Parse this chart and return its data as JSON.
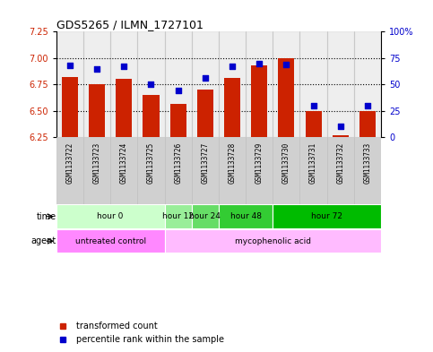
{
  "title": "GDS5265 / ILMN_1727101",
  "samples": [
    "GSM1133722",
    "GSM1133723",
    "GSM1133724",
    "GSM1133725",
    "GSM1133726",
    "GSM1133727",
    "GSM1133728",
    "GSM1133729",
    "GSM1133730",
    "GSM1133731",
    "GSM1133732",
    "GSM1133733"
  ],
  "bar_values": [
    6.82,
    6.75,
    6.8,
    6.65,
    6.57,
    6.7,
    6.81,
    6.93,
    7.0,
    6.5,
    6.27,
    6.5
  ],
  "bar_bottom": 6.25,
  "percentile_values": [
    68,
    65,
    67,
    50,
    44,
    56,
    67,
    70,
    69,
    30,
    10,
    30
  ],
  "left_ylim": [
    6.25,
    7.25
  ],
  "right_ylim": [
    0,
    100
  ],
  "left_yticks": [
    6.25,
    6.5,
    6.75,
    7.0,
    7.25
  ],
  "right_yticks": [
    0,
    25,
    50,
    75,
    100
  ],
  "right_yticklabels": [
    "0",
    "25",
    "50",
    "75",
    "100%"
  ],
  "dotted_lines": [
    6.5,
    6.75,
    7.0
  ],
  "bar_color": "#cc2200",
  "dot_color": "#0000cc",
  "time_groups": [
    {
      "label": "hour 0",
      "start": 0,
      "end": 4,
      "color": "#ccffcc"
    },
    {
      "label": "hour 12",
      "start": 4,
      "end": 5,
      "color": "#99ee99"
    },
    {
      "label": "hour 24",
      "start": 5,
      "end": 6,
      "color": "#66dd66"
    },
    {
      "label": "hour 48",
      "start": 6,
      "end": 8,
      "color": "#33cc33"
    },
    {
      "label": "hour 72",
      "start": 8,
      "end": 12,
      "color": "#00bb00"
    }
  ],
  "agent_groups": [
    {
      "label": "untreated control",
      "start": 0,
      "end": 4,
      "color": "#ff88ff"
    },
    {
      "label": "mycophenolic acid",
      "start": 4,
      "end": 12,
      "color": "#ffbbff"
    }
  ],
  "ylabel_left_color": "#cc2200",
  "ylabel_right_color": "#0000cc",
  "sample_bg_color": "#d0d0d0"
}
